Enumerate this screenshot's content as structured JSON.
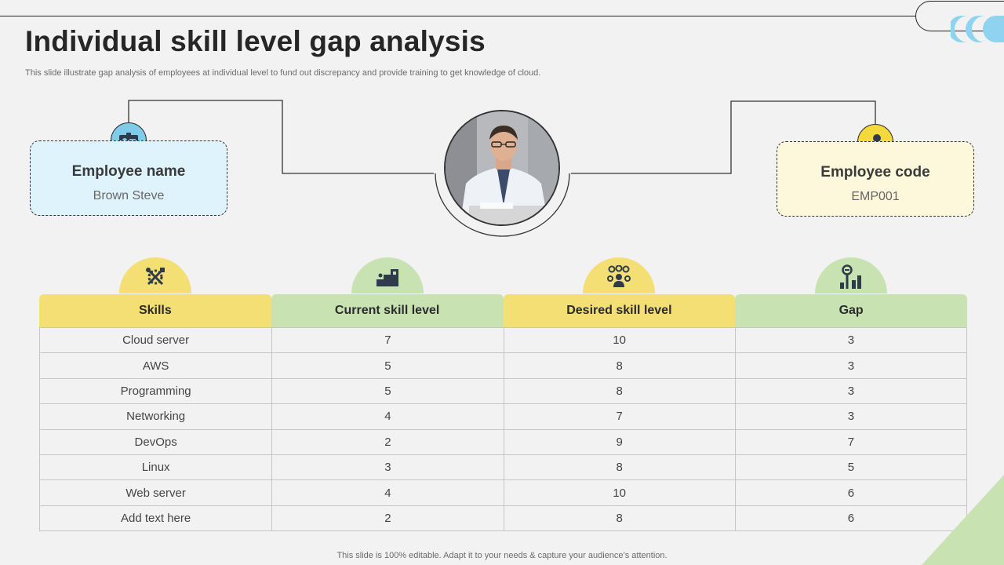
{
  "slide": {
    "title": "Individual skill level gap analysis",
    "subtitle": "This slide illustrate gap analysis of employees at individual level to fund out discrepancy and provide training to get knowledge of cloud.",
    "footer": "This slide is 100% editable. Adapt it to your needs & capture your audience’s attention."
  },
  "employee": {
    "name_label": "Employee name",
    "name_value": "Brown Steve",
    "code_label": "Employee code",
    "code_value": "EMP001"
  },
  "icons": {
    "name_badge": "id-card-icon",
    "code_badge": "user-settings-icon",
    "skills": "tools-icon",
    "current": "steps-icon",
    "desired": "team-gears-icon",
    "gap": "gap-signpost-icon"
  },
  "colors": {
    "yellow_header": "#f4df75",
    "green_header": "#c9e2b2",
    "blue_card": "#dff3fc",
    "yellow_card": "#fdf8dc",
    "accent_blue": "#7fcbe9",
    "accent_yellow": "#f4d93c"
  },
  "table": {
    "headers": [
      "Skills",
      "Current skill level",
      "Desired skill level",
      "Gap"
    ],
    "rows": [
      [
        "Cloud server",
        "7",
        "10",
        "3"
      ],
      [
        "AWS",
        "5",
        "8",
        "3"
      ],
      [
        "Programming",
        "5",
        "8",
        "3"
      ],
      [
        "Networking",
        "4",
        "7",
        "3"
      ],
      [
        "DevOps",
        "2",
        "9",
        "7"
      ],
      [
        "Linux",
        "3",
        "8",
        "5"
      ],
      [
        "Web server",
        "4",
        "10",
        "6"
      ],
      [
        "Add text here",
        "2",
        "8",
        "6"
      ]
    ]
  }
}
